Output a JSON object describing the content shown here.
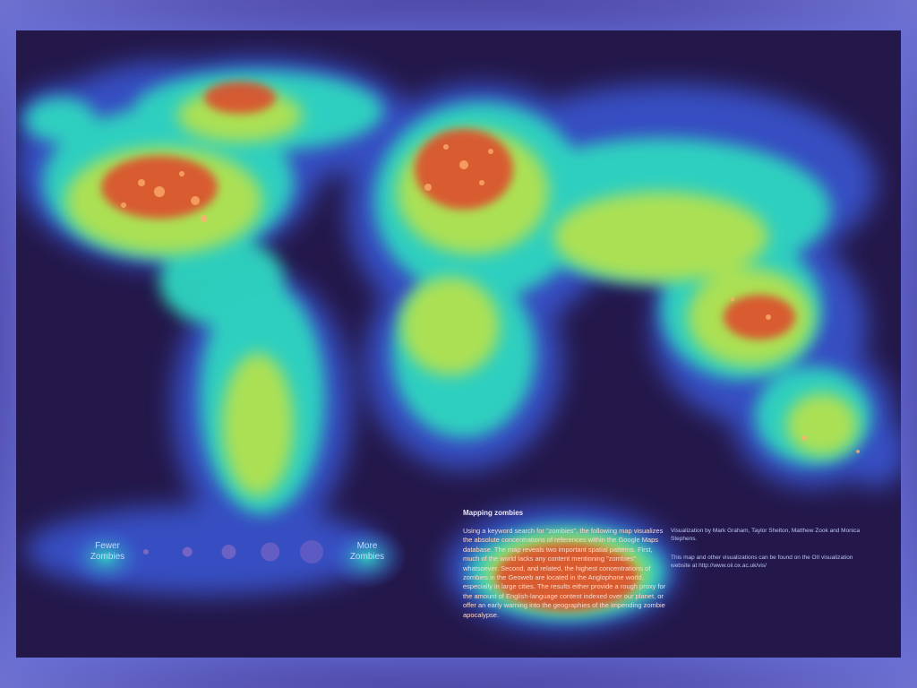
{
  "map": {
    "legend": {
      "fewer_label": "Fewer Zombies",
      "more_label": "More Zombies",
      "symbol_steps": 5
    },
    "info": {
      "title": "Mapping zombies",
      "body": "Using a keyword search for \"zombies\", the following map visualizes the absolute concentrations of references within the Google Maps database. The map reveals two important spatial patterns. First, much of the world lacks any content mentioning \"zombies\" whatsoever. Second, and related, the highest concentrations of zombies in the Geoweb are located in the Anglophone world, especially in large cities. The results either provide a rough proxy for the amount of English-language content indexed over our planet, or offer an early warning into the geographies of the impending zombie apocalypse."
    },
    "credits": {
      "authors": "Visualization by Mark Graham, Taylor Shelton, Matthew Zook and Monica Stephens.",
      "source": "This map and other visualizations can be found on the OII visualization website at http://www.oii.ox.ac.uk/vis/"
    },
    "colors": {
      "background": "#24184a",
      "low": "#3b58d8",
      "mid": "#2fd6c0",
      "high": "#b9e24a",
      "peak": "#e0452a"
    }
  }
}
